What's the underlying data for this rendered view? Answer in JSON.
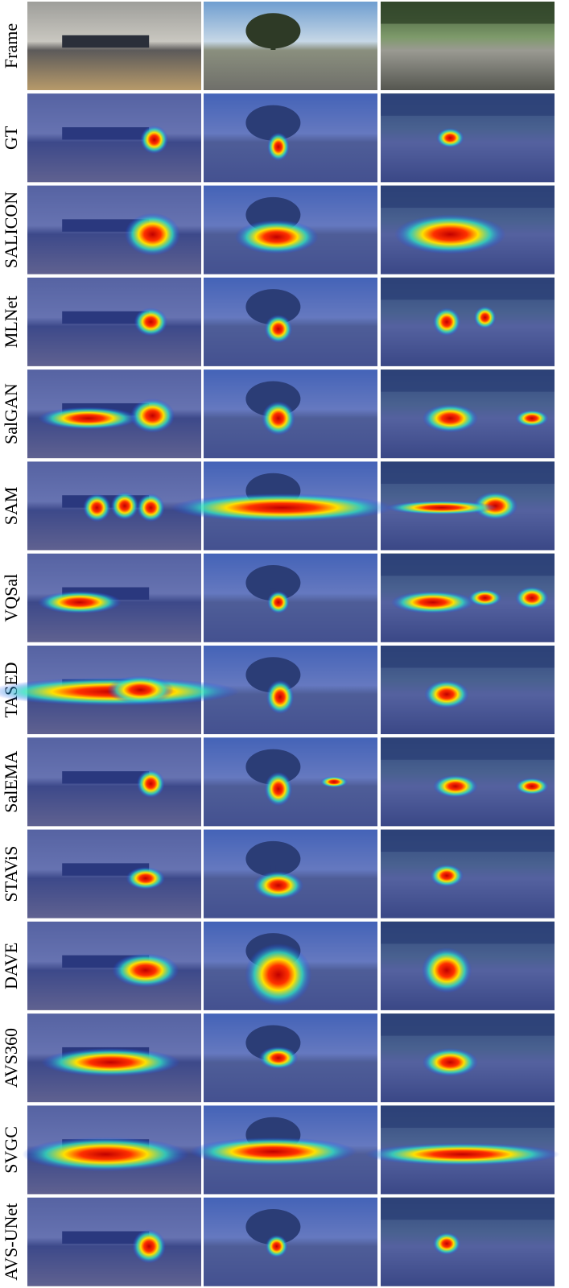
{
  "rows": [
    {
      "label": "Frame"
    },
    {
      "label": "GT"
    },
    {
      "label": "SALICON"
    },
    {
      "label": "MLNet"
    },
    {
      "label": "SalGAN"
    },
    {
      "label": "SAM"
    },
    {
      "label": "VQSal"
    },
    {
      "label": "TASED"
    },
    {
      "label": "SalEMA"
    },
    {
      "label": "STAViS"
    },
    {
      "label": "DAVE"
    },
    {
      "label": "AVS360"
    },
    {
      "label": "SVGC"
    },
    {
      "label": "AVS-UNet"
    }
  ]
}
